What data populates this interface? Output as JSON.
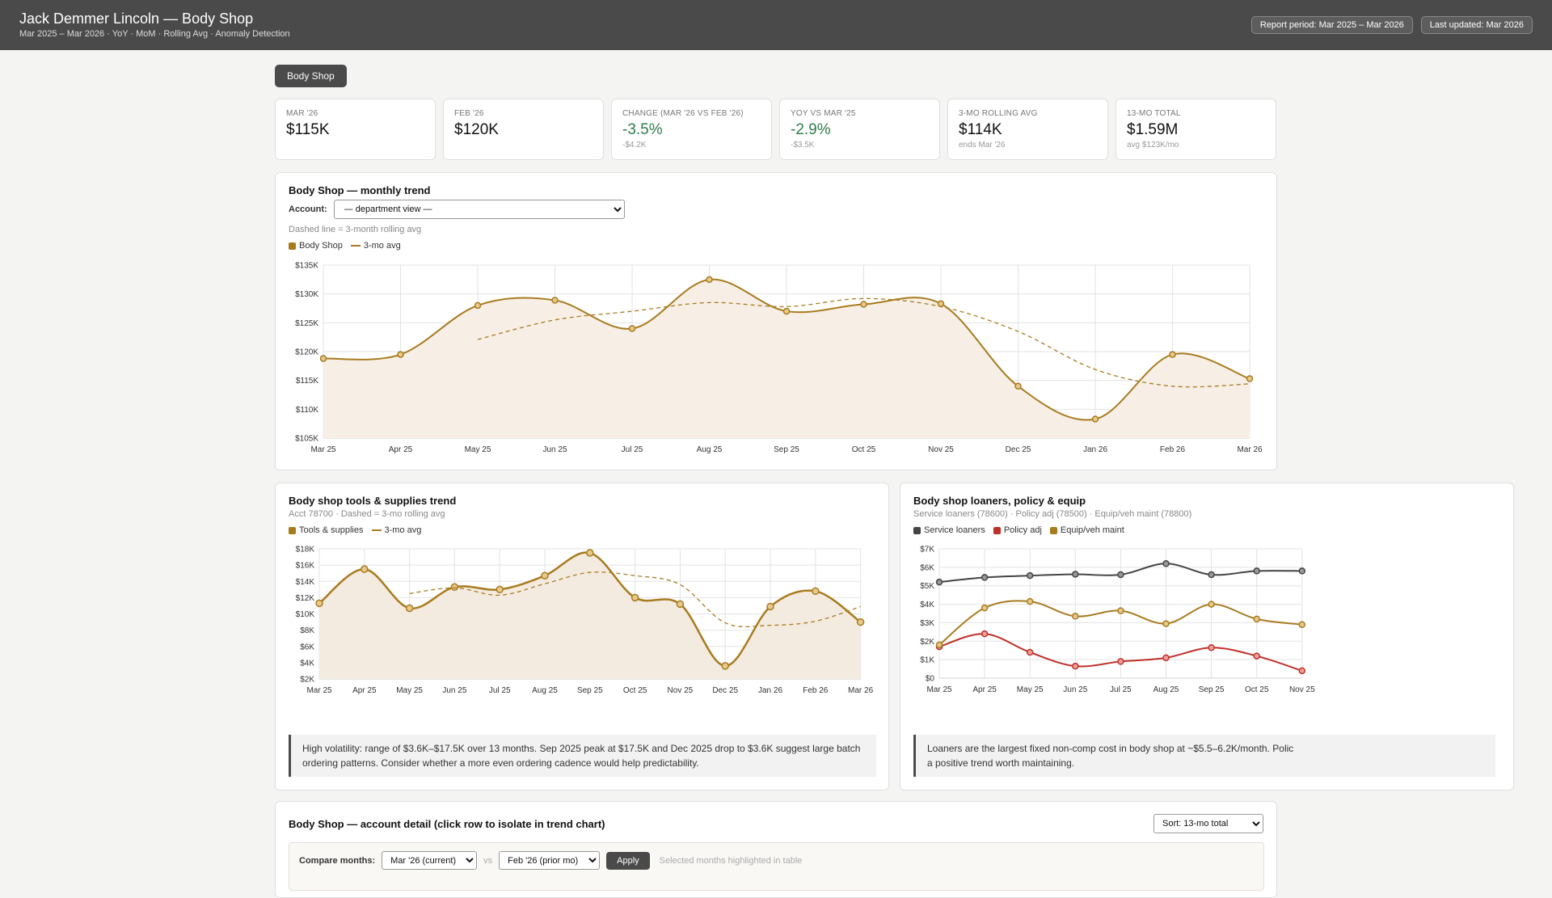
{
  "header": {
    "title": "Jack Demmer Lincoln — Body Shop",
    "subtitle": "Mar 2025 – Mar 2026 · YoY · MoM · Rolling Avg · Anomaly Detection",
    "report_period": "Report period: Mar 2025 – Mar 2026",
    "last_updated": "Last updated: Mar 2026"
  },
  "dept_tab": "Body Shop",
  "kpis": [
    {
      "label": "MAR '26",
      "value": "$115K",
      "sub": ""
    },
    {
      "label": "FEB '26",
      "value": "$120K",
      "sub": ""
    },
    {
      "label": "CHANGE (MAR '26 VS FEB '26)",
      "value": "-3.5%",
      "sub": "-$4.2K"
    },
    {
      "label": "YOY VS MAR '25",
      "value": "-2.9%",
      "sub": "-$3.5K"
    },
    {
      "label": "3-MO ROLLING AVG",
      "value": "$114K",
      "sub": "ends Mar '26"
    },
    {
      "label": "13-MO TOTAL",
      "value": "$1.59M",
      "sub": "avg $123K/mo"
    }
  ],
  "colors": {
    "gold": "#a97b1f",
    "dark": "#444444",
    "red": "#c0302a",
    "good": "#2e7d4a",
    "fill": "#f7efe6"
  },
  "trend": {
    "title": "Body Shop — monthly trend",
    "account_label": "Account:",
    "account_value": "— department view —",
    "note": "Dashed line = 3-month rolling avg",
    "legend": [
      "Body Shop",
      "3-mo avg"
    ]
  },
  "tools": {
    "title": "Body shop tools & supplies trend",
    "sub": "Acct 78700 · Dashed = 3-mo rolling avg",
    "legend": [
      "Tools & supplies",
      "3-mo avg"
    ],
    "note": "High volatility: range of $3.6K–$17.5K over 13 months. Sep 2025 peak at $17.5K and Dec 2025 drop to $3.6K suggest large batch ordering patterns. Consider whether a more even ordering cadence would help predictability."
  },
  "loaners": {
    "title": "Body shop loaners, policy & equip",
    "sub": "Service loaners (78600) · Policy adj (78500) · Equip/veh maint (78800)",
    "legend": [
      "Service loaners",
      "Policy adj",
      "Equip/veh maint"
    ],
    "note": "Loaners are the largest fixed non-comp cost in body shop at ~$5.5–6.2K/month. Polic",
    "note2": "a positive trend worth maintaining."
  },
  "detail": {
    "title": "Body Shop — account detail (click row to isolate in trend chart)",
    "sort": "Sort: 13-mo total",
    "compare_label": "Compare months:",
    "month_a": "Mar '26 (current)",
    "vs": "vs",
    "month_b": "Feb '26 (prior mo)",
    "apply": "Apply",
    "hint": "Selected months highlighted in table"
  },
  "chart_data": [
    {
      "type": "line",
      "x": [
        "Mar 25",
        "Apr 25",
        "May 25",
        "Jun 25",
        "Jul 25",
        "Aug 25",
        "Sep 25",
        "Oct 25",
        "Nov 25",
        "Dec 25",
        "Jan 26",
        "Feb 26",
        "Mar 26"
      ],
      "series": [
        {
          "name": "Body Shop",
          "values": [
            118.8,
            119.5,
            128.0,
            128.9,
            124.0,
            132.5,
            127.0,
            128.2,
            128.3,
            114.0,
            108.3,
            119.5,
            115.3
          ]
        },
        {
          "name": "3-mo avg",
          "values": [
            null,
            null,
            122.1,
            125.5,
            127.0,
            128.5,
            127.8,
            129.2,
            127.8,
            123.5,
            116.9,
            114.0,
            114.4
          ]
        }
      ],
      "y_ticks": [
        "$105K",
        "$110K",
        "$115K",
        "$120K",
        "$125K",
        "$130K",
        "$135K"
      ],
      "ylim": [
        105,
        135
      ]
    },
    {
      "type": "line",
      "x": [
        "Mar 25",
        "Apr 25",
        "May 25",
        "Jun 25",
        "Jul 25",
        "Aug 25",
        "Sep 25",
        "Oct 25",
        "Nov 25",
        "Dec 25",
        "Jan 26",
        "Feb 26",
        "Mar 26"
      ],
      "series": [
        {
          "name": "Tools & supplies",
          "values": [
            11.3,
            15.5,
            10.7,
            13.3,
            13.0,
            14.7,
            17.5,
            12.0,
            11.2,
            3.6,
            10.9,
            12.8,
            9.0
          ]
        },
        {
          "name": "3-mo avg",
          "values": [
            null,
            null,
            12.5,
            13.2,
            12.3,
            13.7,
            15.1,
            14.7,
            13.6,
            8.9,
            8.6,
            9.1,
            10.9
          ]
        }
      ],
      "y_ticks": [
        "$2K",
        "$4K",
        "$6K",
        "$8K",
        "$10K",
        "$12K",
        "$14K",
        "$16K",
        "$18K"
      ],
      "ylim": [
        2,
        18
      ]
    },
    {
      "type": "line",
      "x": [
        "Mar 25",
        "Apr 25",
        "May 25",
        "Jun 25",
        "Jul 25",
        "Aug 25",
        "Sep 25",
        "Oct 25",
        "Nov 25"
      ],
      "series": [
        {
          "name": "Service loaners",
          "values": [
            5.2,
            5.45,
            5.55,
            5.62,
            5.6,
            6.2,
            5.6,
            5.8,
            5.8
          ]
        },
        {
          "name": "Policy adj",
          "values": [
            1.7,
            2.4,
            1.4,
            0.65,
            0.9,
            1.1,
            1.65,
            1.2,
            0.4
          ]
        },
        {
          "name": "Equip/veh maint",
          "values": [
            1.8,
            3.8,
            4.15,
            3.35,
            3.65,
            2.95,
            4.0,
            3.2,
            2.9
          ]
        }
      ],
      "y_ticks": [
        "$0",
        "$1K",
        "$2K",
        "$3K",
        "$4K",
        "$5K",
        "$6K",
        "$7K"
      ],
      "ylim": [
        0,
        7
      ]
    }
  ]
}
